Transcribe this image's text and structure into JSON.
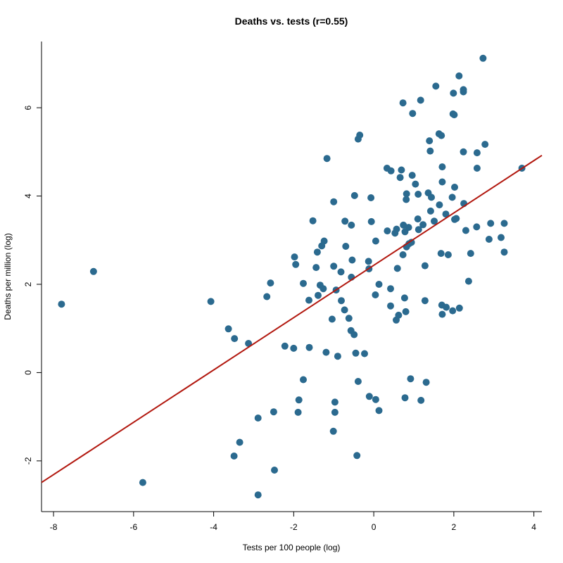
{
  "chart_data": {
    "type": "scatter",
    "title": "Deaths vs. tests (r=0.55)",
    "xlabel": "Tests per 100 people (log)",
    "ylabel": "Deaths per million (log)",
    "xlim": [
      -8.3,
      4.2
    ],
    "ylim": [
      -3.15,
      7.5
    ],
    "xticks": [
      -8,
      -6,
      -4,
      -2,
      0,
      2,
      4
    ],
    "yticks": [
      -2,
      0,
      2,
      4,
      6
    ],
    "grid": false,
    "colors": {
      "points": "#2b6a8f",
      "fit_line": "#b2180f"
    },
    "fit_line": {
      "x": [
        -8.3,
        4.2
      ],
      "y": [
        -2.49,
        4.92
      ]
    },
    "points": [
      {
        "x": 2.73,
        "y": 7.12
      },
      {
        "x": 2.13,
        "y": 6.72
      },
      {
        "x": 1.55,
        "y": 6.49
      },
      {
        "x": 2.24,
        "y": 6.41
      },
      {
        "x": 1.99,
        "y": 6.33
      },
      {
        "x": 2.24,
        "y": 6.36
      },
      {
        "x": 1.17,
        "y": 6.17
      },
      {
        "x": 0.73,
        "y": 6.11
      },
      {
        "x": 0.97,
        "y": 5.87
      },
      {
        "x": 1.98,
        "y": 5.86
      },
      {
        "x": 2.01,
        "y": 5.84
      },
      {
        "x": 1.63,
        "y": 5.41
      },
      {
        "x": 1.69,
        "y": 5.37
      },
      {
        "x": -0.35,
        "y": 5.38
      },
      {
        "x": -0.39,
        "y": 5.29
      },
      {
        "x": 1.39,
        "y": 5.25
      },
      {
        "x": 2.78,
        "y": 5.17
      },
      {
        "x": 1.41,
        "y": 5.02
      },
      {
        "x": 2.24,
        "y": 5.0
      },
      {
        "x": 2.58,
        "y": 4.98
      },
      {
        "x": -1.17,
        "y": 4.85
      },
      {
        "x": 0.33,
        "y": 4.63
      },
      {
        "x": 0.43,
        "y": 4.57
      },
      {
        "x": 0.69,
        "y": 4.59
      },
      {
        "x": 1.71,
        "y": 4.66
      },
      {
        "x": 2.58,
        "y": 4.63
      },
      {
        "x": 3.7,
        "y": 4.63
      },
      {
        "x": 0.96,
        "y": 4.47
      },
      {
        "x": 0.66,
        "y": 4.42
      },
      {
        "x": 1.71,
        "y": 4.32
      },
      {
        "x": 1.04,
        "y": 4.27
      },
      {
        "x": 2.02,
        "y": 4.2
      },
      {
        "x": 1.36,
        "y": 4.07
      },
      {
        "x": 0.82,
        "y": 4.05
      },
      {
        "x": 1.11,
        "y": 4.04
      },
      {
        "x": -0.48,
        "y": 4.01
      },
      {
        "x": -0.07,
        "y": 3.96
      },
      {
        "x": 1.44,
        "y": 3.97
      },
      {
        "x": 1.96,
        "y": 3.97
      },
      {
        "x": 0.81,
        "y": 3.92
      },
      {
        "x": -1.0,
        "y": 3.87
      },
      {
        "x": 1.64,
        "y": 3.8
      },
      {
        "x": 2.25,
        "y": 3.83
      },
      {
        "x": 1.42,
        "y": 3.66
      },
      {
        "x": 1.8,
        "y": 3.59
      },
      {
        "x": -0.06,
        "y": 3.42
      },
      {
        "x": -0.72,
        "y": 3.43
      },
      {
        "x": -1.52,
        "y": 3.44
      },
      {
        "x": 1.1,
        "y": 3.48
      },
      {
        "x": 1.51,
        "y": 3.43
      },
      {
        "x": 2.02,
        "y": 3.47
      },
      {
        "x": 2.06,
        "y": 3.49
      },
      {
        "x": 2.92,
        "y": 3.38
      },
      {
        "x": 3.26,
        "y": 3.38
      },
      {
        "x": -0.56,
        "y": 3.34
      },
      {
        "x": 0.74,
        "y": 3.34
      },
      {
        "x": 1.23,
        "y": 3.35
      },
      {
        "x": 0.87,
        "y": 3.29
      },
      {
        "x": 0.57,
        "y": 3.25
      },
      {
        "x": 2.57,
        "y": 3.3
      },
      {
        "x": 0.34,
        "y": 3.21
      },
      {
        "x": 0.53,
        "y": 3.16
      },
      {
        "x": 1.12,
        "y": 3.24
      },
      {
        "x": 2.3,
        "y": 3.22
      },
      {
        "x": 0.78,
        "y": 3.19
      },
      {
        "x": 0.05,
        "y": 2.98
      },
      {
        "x": 2.88,
        "y": 3.02
      },
      {
        "x": 3.18,
        "y": 3.06
      },
      {
        "x": -1.24,
        "y": 2.98
      },
      {
        "x": -1.3,
        "y": 2.87
      },
      {
        "x": 0.88,
        "y": 2.92
      },
      {
        "x": 0.94,
        "y": 2.95
      },
      {
        "x": -0.7,
        "y": 2.86
      },
      {
        "x": 0.82,
        "y": 2.85
      },
      {
        "x": -1.41,
        "y": 2.73
      },
      {
        "x": 1.68,
        "y": 2.7
      },
      {
        "x": 1.86,
        "y": 2.67
      },
      {
        "x": 2.42,
        "y": 2.7
      },
      {
        "x": 3.26,
        "y": 2.73
      },
      {
        "x": -1.98,
        "y": 2.62
      },
      {
        "x": 0.73,
        "y": 2.67
      },
      {
        "x": -0.54,
        "y": 2.55
      },
      {
        "x": -0.13,
        "y": 2.52
      },
      {
        "x": -1.95,
        "y": 2.45
      },
      {
        "x": -1.0,
        "y": 2.41
      },
      {
        "x": 1.28,
        "y": 2.42
      },
      {
        "x": -1.44,
        "y": 2.38
      },
      {
        "x": 0.59,
        "y": 2.36
      },
      {
        "x": -0.12,
        "y": 2.35
      },
      {
        "x": -0.82,
        "y": 2.28
      },
      {
        "x": -7.0,
        "y": 2.29
      },
      {
        "x": -0.56,
        "y": 2.16
      },
      {
        "x": 2.37,
        "y": 2.07
      },
      {
        "x": -2.58,
        "y": 2.03
      },
      {
        "x": -1.76,
        "y": 2.02
      },
      {
        "x": -1.34,
        "y": 1.98
      },
      {
        "x": 0.13,
        "y": 2.0
      },
      {
        "x": -1.26,
        "y": 1.9
      },
      {
        "x": 0.42,
        "y": 1.9
      },
      {
        "x": -0.94,
        "y": 1.87
      },
      {
        "x": -1.39,
        "y": 1.75
      },
      {
        "x": 0.04,
        "y": 1.76
      },
      {
        "x": -2.67,
        "y": 1.72
      },
      {
        "x": 0.77,
        "y": 1.69
      },
      {
        "x": -4.07,
        "y": 1.61
      },
      {
        "x": -1.62,
        "y": 1.64
      },
      {
        "x": -0.81,
        "y": 1.63
      },
      {
        "x": 1.28,
        "y": 1.63
      },
      {
        "x": -7.8,
        "y": 1.55
      },
      {
        "x": 0.42,
        "y": 1.51
      },
      {
        "x": 1.7,
        "y": 1.53
      },
      {
        "x": 1.81,
        "y": 1.48
      },
      {
        "x": 2.14,
        "y": 1.46
      },
      {
        "x": -0.73,
        "y": 1.42
      },
      {
        "x": 1.97,
        "y": 1.4
      },
      {
        "x": 0.8,
        "y": 1.38
      },
      {
        "x": 1.71,
        "y": 1.32
      },
      {
        "x": 0.62,
        "y": 1.3
      },
      {
        "x": -0.62,
        "y": 1.23
      },
      {
        "x": -1.04,
        "y": 1.21
      },
      {
        "x": 0.56,
        "y": 1.19
      },
      {
        "x": -3.63,
        "y": 0.99
      },
      {
        "x": -0.57,
        "y": 0.95
      },
      {
        "x": -0.49,
        "y": 0.86
      },
      {
        "x": -3.48,
        "y": 0.77
      },
      {
        "x": -3.13,
        "y": 0.66
      },
      {
        "x": -2.22,
        "y": 0.6
      },
      {
        "x": -1.61,
        "y": 0.57
      },
      {
        "x": -2.0,
        "y": 0.55
      },
      {
        "x": -1.19,
        "y": 0.46
      },
      {
        "x": -0.45,
        "y": 0.44
      },
      {
        "x": -0.23,
        "y": 0.43
      },
      {
        "x": -0.9,
        "y": 0.37
      },
      {
        "x": -1.76,
        "y": -0.16
      },
      {
        "x": 0.92,
        "y": -0.14
      },
      {
        "x": -0.39,
        "y": -0.2
      },
      {
        "x": 1.31,
        "y": -0.22
      },
      {
        "x": -0.11,
        "y": -0.54
      },
      {
        "x": 0.78,
        "y": -0.57
      },
      {
        "x": 0.05,
        "y": -0.61
      },
      {
        "x": -1.87,
        "y": -0.62
      },
      {
        "x": 1.18,
        "y": -0.63
      },
      {
        "x": -0.97,
        "y": -0.67
      },
      {
        "x": 0.13,
        "y": -0.86
      },
      {
        "x": -2.5,
        "y": -0.89
      },
      {
        "x": -1.89,
        "y": -0.9
      },
      {
        "x": -0.97,
        "y": -0.9
      },
      {
        "x": -2.89,
        "y": -1.03
      },
      {
        "x": -1.01,
        "y": -1.33
      },
      {
        "x": -3.35,
        "y": -1.58
      },
      {
        "x": -3.49,
        "y": -1.89
      },
      {
        "x": -0.42,
        "y": -1.88
      },
      {
        "x": -2.48,
        "y": -2.21
      },
      {
        "x": -5.77,
        "y": -2.49
      },
      {
        "x": -2.89,
        "y": -2.77
      }
    ]
  }
}
